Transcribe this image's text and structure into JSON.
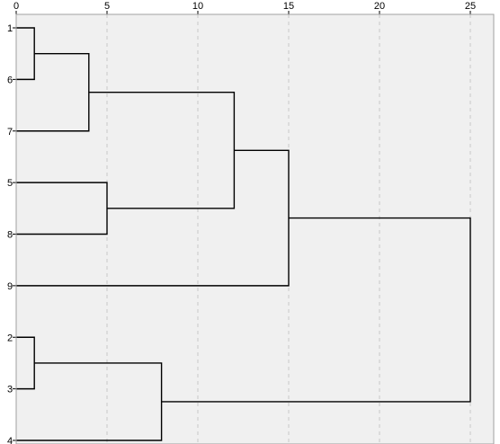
{
  "chart_data": {
    "type": "dendrogram",
    "title": "",
    "xlabel": "",
    "ylabel": "",
    "xlim": [
      0,
      25
    ],
    "x_ticks": [
      0,
      5,
      10,
      15,
      20,
      25
    ],
    "x_tick_labels": [
      "0",
      "5",
      "10",
      "15",
      "20",
      "25"
    ],
    "grid": "vertical dashed at ticks",
    "leaves": [
      "1",
      "6",
      "7",
      "5",
      "8",
      "9",
      "2",
      "3",
      "4"
    ],
    "merges": [
      {
        "left": "1",
        "right": "6",
        "height": 1
      },
      {
        "left": "1+6",
        "right": "7",
        "height": 4
      },
      {
        "left": "5",
        "right": "8",
        "height": 5
      },
      {
        "left": "2",
        "right": "3",
        "height": 1
      },
      {
        "left": "2+3",
        "right": "4",
        "height": 8
      },
      {
        "left": "1+6+7",
        "right": "5+8",
        "height": 12
      },
      {
        "left": "1+6+7+5+8",
        "right": "9",
        "height": 15
      },
      {
        "left": "1+6+7+5+8+9",
        "right": "2+3+4",
        "height": 25
      }
    ],
    "colors": {
      "background": "#f0f0f0",
      "lines": "#000000",
      "grid": "#c8c8c8",
      "frame": "#a0a0a0"
    }
  }
}
